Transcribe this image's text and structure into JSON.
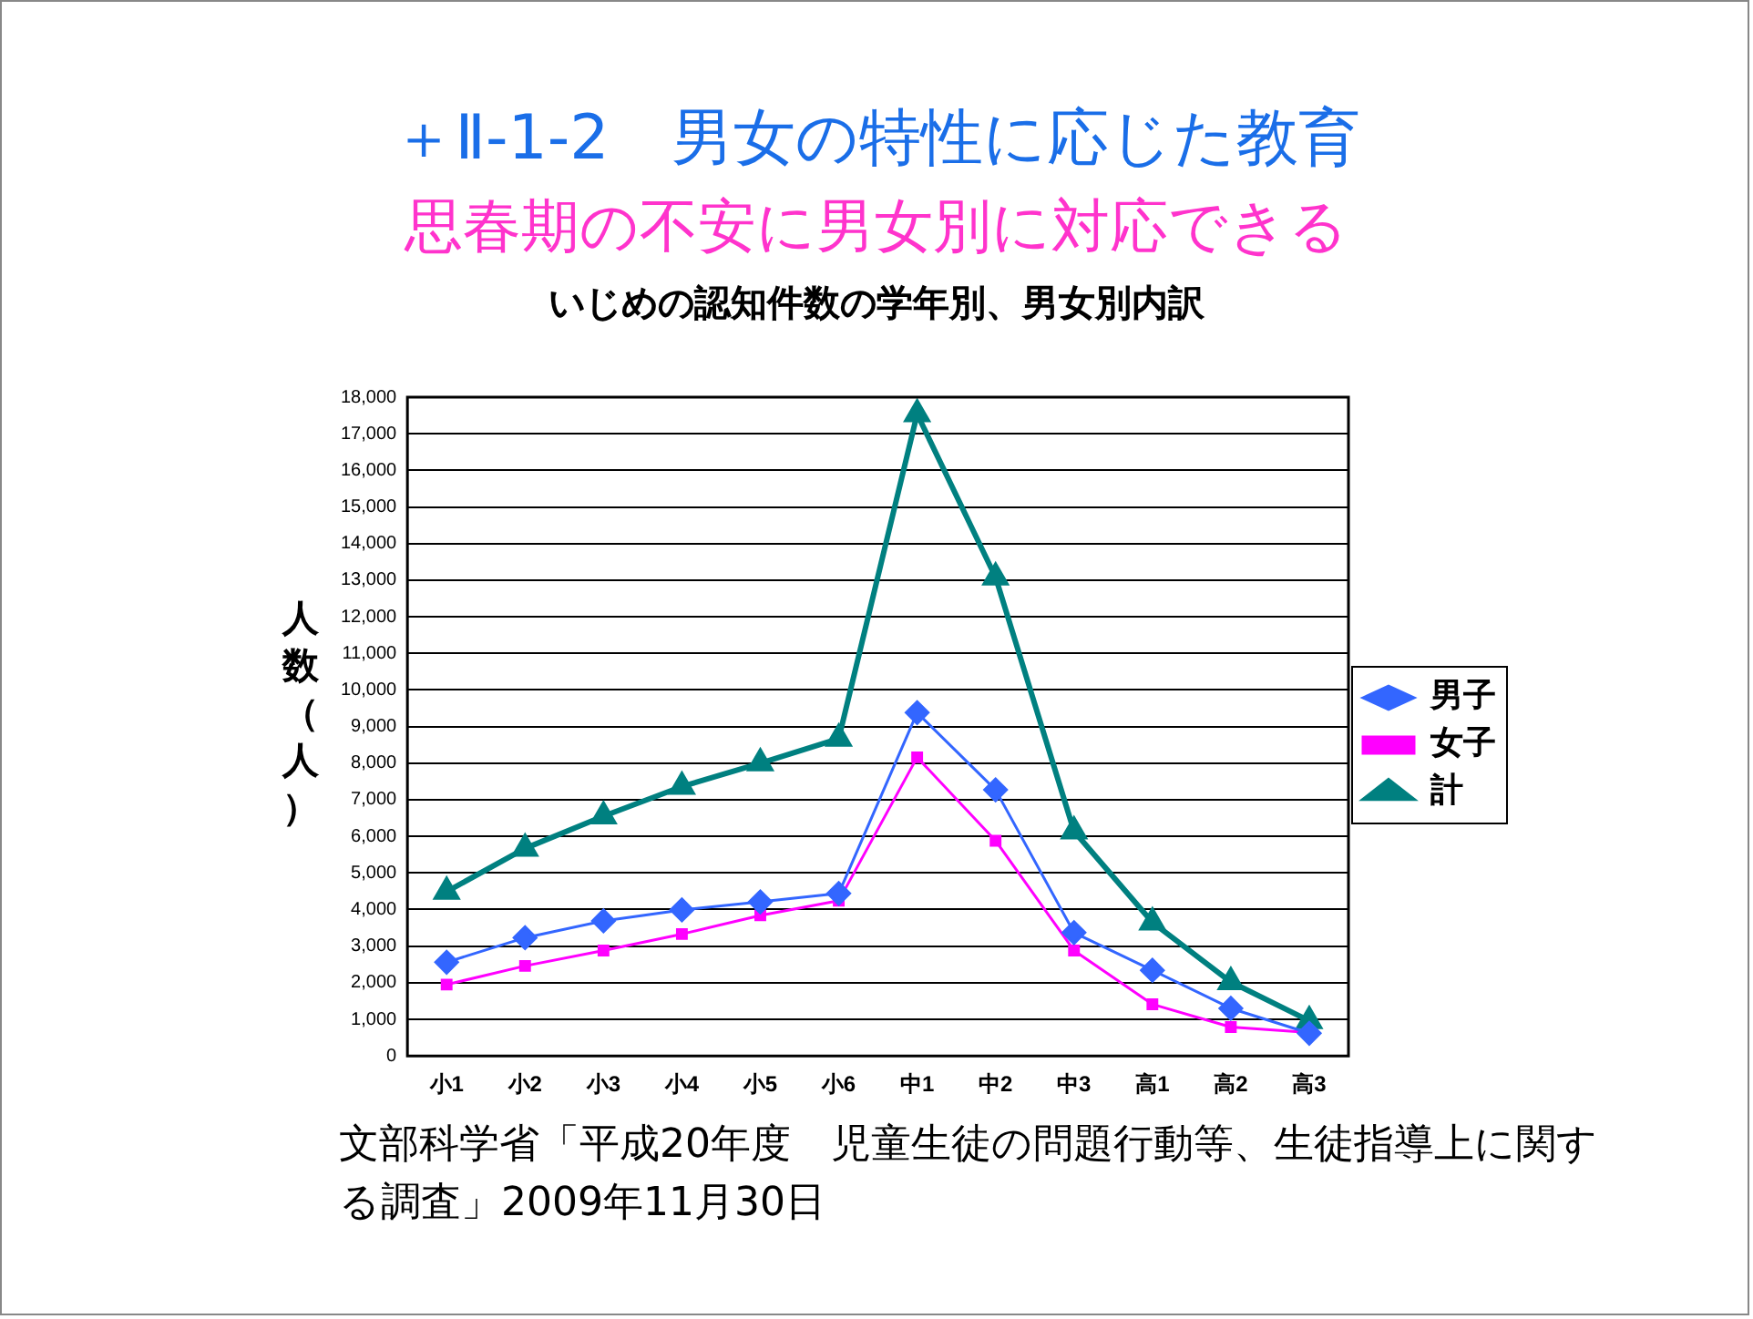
{
  "chart_data": {
    "type": "line",
    "title": "＋Ⅱ-1-2　男女の特性に応じた教育",
    "subtitle": "思春期の不安に男女別に対応できる",
    "ylabel": "人数（人）",
    "annotations": [
      "いじめの認知件数の学年別、男女別内訳",
      "文部科学省「平成20年度　児童生徒の問題行動等、生徒指導上に関する調査」2009年11月30日"
    ],
    "categories": [
      "小1",
      "小2",
      "小3",
      "小4",
      "小5",
      "小6",
      "中1",
      "中2",
      "中3",
      "高1",
      "高2",
      "高3"
    ],
    "series": [
      {
        "name": "男子",
        "color": "#3366ff",
        "marker": "diamond",
        "values": [
          2560,
          3230,
          3690,
          3990,
          4210,
          4440,
          9380,
          7270,
          3370,
          2340,
          1300,
          620
        ]
      },
      {
        "name": "女子",
        "color": "#ff00ff",
        "marker": "square",
        "values": [
          1950,
          2460,
          2880,
          3330,
          3840,
          4240,
          8160,
          5880,
          2880,
          1410,
          790,
          640
        ]
      },
      {
        "name": "計",
        "color": "#008080",
        "marker": "triangle",
        "values": [
          4490,
          5670,
          6550,
          7360,
          8000,
          8670,
          17540,
          13080,
          6140,
          3650,
          2020,
          960
        ]
      }
    ],
    "ylim": [
      0,
      18000
    ],
    "yticks": [
      0,
      {
        "value": 1000,
        "label": "1,000"
      },
      {
        "value": 2000,
        "label": "2,000"
      },
      {
        "value": 3000,
        "label": "3,000"
      },
      {
        "value": 4000,
        "label": "4,000"
      },
      {
        "value": 5000,
        "label": "5,000"
      },
      {
        "value": 6000,
        "label": "6,000"
      },
      {
        "value": 7000,
        "label": "7,000"
      },
      {
        "value": 8000,
        "label": "8,000"
      },
      {
        "value": 9000,
        "label": "9,000"
      },
      {
        "value": 10000,
        "label": "10,000"
      },
      {
        "value": 11000,
        "label": "11,000"
      },
      {
        "value": 12000,
        "label": "12,000"
      },
      {
        "value": 13000,
        "label": "13,000"
      },
      {
        "value": 14000,
        "label": "14,000"
      },
      {
        "value": 15000,
        "label": "15,000"
      },
      {
        "value": 16000,
        "label": "16,000"
      },
      {
        "value": 17000,
        "label": "17,000"
      },
      {
        "value": 18000,
        "label": "18,000"
      }
    ],
    "grid": "y",
    "legend": "right",
    "line_style": "solid"
  }
}
